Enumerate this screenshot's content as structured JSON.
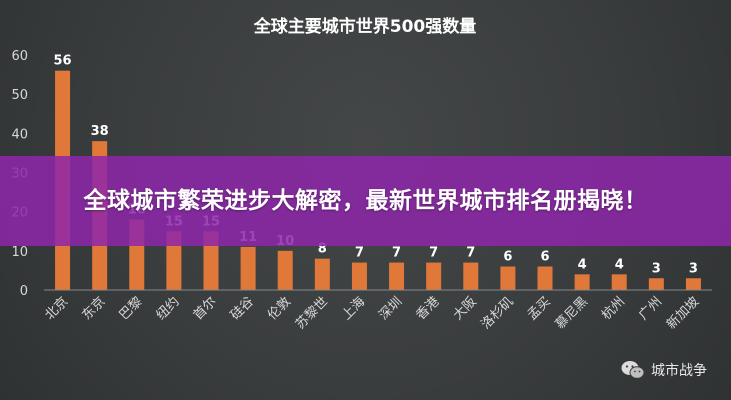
{
  "banner": {
    "headline": "全球城市繁荣进步大解密，最新世界城市排名册揭晓！"
  },
  "watermark": {
    "label": "城市战争",
    "icon": "wechat-icon"
  },
  "colors": {
    "bar": "#e0783a",
    "label": "#ffffff",
    "tick": "#d8d8d8",
    "axis": "#888888",
    "banner": "#8e26aa"
  },
  "chart_data": {
    "type": "bar",
    "title": "全球主要城市世界500强数量",
    "categories": [
      "北京",
      "东京",
      "巴黎",
      "纽约",
      "首尔",
      "硅谷",
      "伦敦",
      "苏黎世",
      "上海",
      "深圳",
      "香港",
      "大阪",
      "洛杉矶",
      "孟买",
      "慕尼黑",
      "杭州",
      "广州",
      "新加坡"
    ],
    "values": [
      56,
      38,
      18,
      15,
      15,
      11,
      10,
      8,
      7,
      7,
      7,
      7,
      6,
      6,
      4,
      4,
      3,
      3
    ],
    "yticks": [
      0,
      10,
      20,
      30,
      40,
      50,
      60
    ],
    "ylim": [
      0,
      60
    ],
    "grid": false,
    "legend": "none"
  }
}
